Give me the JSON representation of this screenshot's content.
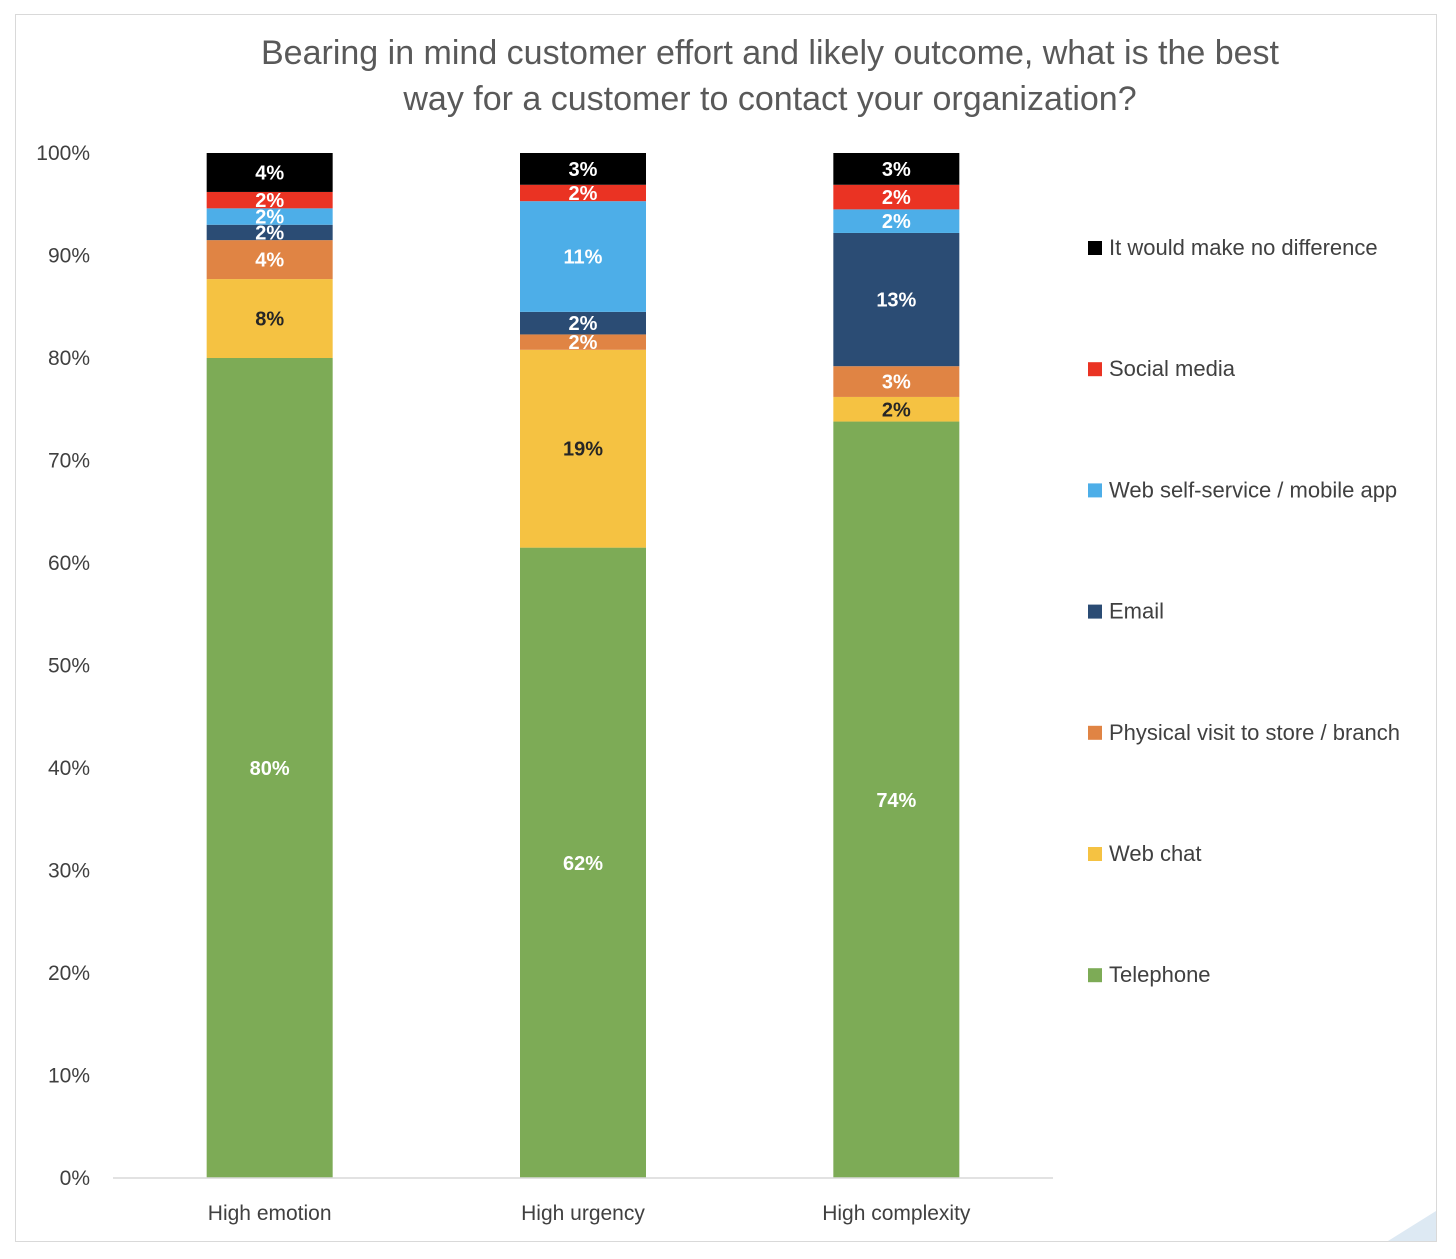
{
  "chart_data": {
    "type": "bar",
    "stacked": true,
    "title": "Bearing in mind customer effort and likely outcome, what is the best\nway for a customer to contact your organization?",
    "categories": [
      "High emotion",
      "High urgency",
      "High complexity"
    ],
    "ylim": [
      0,
      100
    ],
    "yticks": [
      "0%",
      "10%",
      "20%",
      "30%",
      "40%",
      "50%",
      "60%",
      "70%",
      "80%",
      "90%",
      "100%"
    ],
    "legend_position": "right",
    "grid": false,
    "series": [
      {
        "name": "Telephone",
        "color": "#7dab56",
        "values": [
          80,
          61.5,
          73.8
        ],
        "labels": [
          "80%",
          "62%",
          "74%"
        ],
        "label_color": "#ffffff"
      },
      {
        "name": "Web chat",
        "color": "#f5c242",
        "values": [
          7.7,
          19.3,
          2.4
        ],
        "labels": [
          "8%",
          "19%",
          "2%"
        ],
        "label_color": "#262626"
      },
      {
        "name": "Physical visit to store / branch",
        "color": "#e08444",
        "values": [
          3.8,
          1.5,
          3.0
        ],
        "labels": [
          "4%",
          "2%",
          "3%"
        ],
        "label_color": "#ffffff"
      },
      {
        "name": "Email",
        "color": "#2b4c74",
        "values": [
          1.5,
          2.2,
          13.0
        ],
        "labels": [
          "2%",
          "2%",
          "13%"
        ],
        "label_color": "#ffffff"
      },
      {
        "name": "Web self-service / mobile app",
        "color": "#4daee8",
        "values": [
          1.6,
          10.8,
          2.3
        ],
        "labels": [
          "2%",
          "11%",
          "2%"
        ],
        "label_color": "#ffffff"
      },
      {
        "name": "Social media",
        "color": "#ea3323",
        "values": [
          1.6,
          1.6,
          2.4
        ],
        "labels": [
          "2%",
          "2%",
          "2%"
        ],
        "label_color": "#ffffff"
      },
      {
        "name": "It would make no difference",
        "color": "#000000",
        "values": [
          3.8,
          3.1,
          3.1
        ],
        "labels": [
          "4%",
          "3%",
          "3%"
        ],
        "label_color": "#ffffff"
      }
    ]
  }
}
